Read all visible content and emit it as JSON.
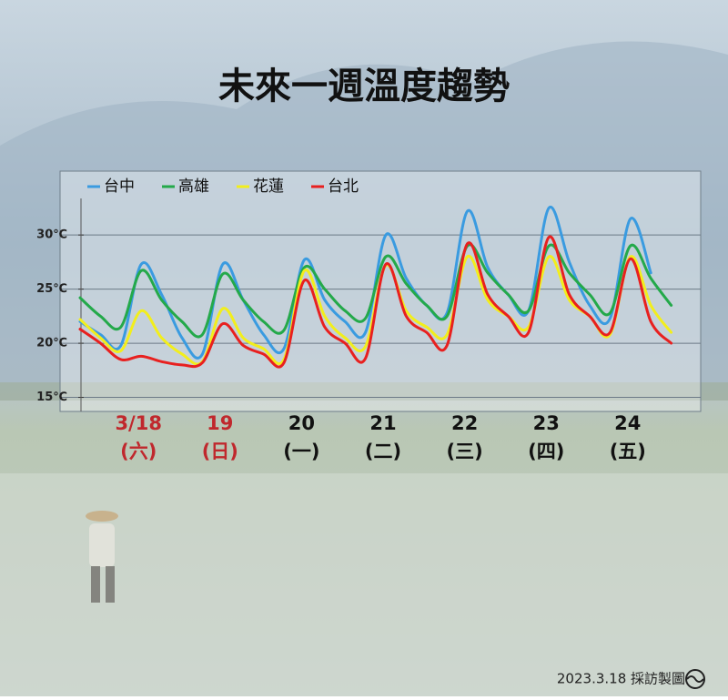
{
  "chart_data": {
    "type": "line",
    "title": "未來一週溫度趨勢",
    "days": [
      {
        "date": "3/18",
        "weekday": "(六)",
        "color": "#c0282d"
      },
      {
        "date": "19",
        "weekday": "(日)",
        "color": "#c0282d"
      },
      {
        "date": "20",
        "weekday": "(一)",
        "color": "#111111"
      },
      {
        "date": "21",
        "weekday": "(二)",
        "color": "#111111"
      },
      {
        "date": "22",
        "weekday": "(三)",
        "color": "#111111"
      },
      {
        "date": "23",
        "weekday": "(四)",
        "color": "#111111"
      },
      {
        "date": "24",
        "weekday": "(五)",
        "color": "#111111"
      }
    ],
    "ylim": [
      13.7,
      35.9
    ],
    "yticks": [
      {
        "value": 15,
        "label": "15℃"
      },
      {
        "value": 20,
        "label": "20℃"
      },
      {
        "value": 25,
        "label": "25℃"
      },
      {
        "value": 30,
        "label": "30℃"
      }
    ],
    "grid": true,
    "legend": "top-left",
    "series": [
      {
        "name": "台中",
        "color": "#3a9be0",
        "values": [
          22.0,
          20.8,
          19.8,
          27.3,
          24.5,
          20.5,
          19.0,
          27.3,
          24.0,
          20.8,
          19.5,
          27.7,
          24.0,
          22.0,
          21.0,
          30.0,
          26.0,
          23.5,
          22.8,
          32.2,
          27.0,
          24.5,
          23.0,
          32.5,
          27.5,
          23.5,
          22.3,
          31.5,
          26.5,
          null
        ]
      },
      {
        "name": "高雄",
        "color": "#24a94a",
        "values": [
          24.2,
          22.5,
          21.5,
          26.7,
          24.0,
          22.0,
          20.8,
          26.4,
          24.0,
          22.0,
          21.2,
          27.0,
          25.0,
          23.0,
          22.3,
          28.0,
          25.5,
          23.5,
          22.5,
          29.0,
          26.5,
          24.5,
          23.0,
          29.0,
          26.5,
          24.5,
          22.8,
          29.0,
          26.0,
          23.5
        ]
      },
      {
        "name": "花蓮",
        "color": "#f2ee1c",
        "values": [
          22.2,
          20.5,
          19.3,
          23.0,
          20.5,
          19.0,
          18.3,
          23.2,
          20.5,
          19.5,
          18.5,
          26.7,
          22.5,
          20.5,
          19.7,
          27.2,
          23.0,
          21.5,
          20.8,
          28.0,
          24.0,
          22.5,
          21.5,
          28.0,
          24.0,
          22.5,
          20.8,
          28.0,
          23.5,
          21.0
        ]
      },
      {
        "name": "台北",
        "color": "#e8201f",
        "values": [
          21.3,
          20.0,
          18.5,
          18.8,
          18.3,
          18.0,
          18.2,
          21.8,
          19.8,
          19.0,
          18.2,
          25.8,
          21.5,
          20.0,
          18.6,
          27.3,
          22.5,
          21.0,
          19.8,
          29.2,
          24.5,
          22.5,
          21.0,
          29.8,
          24.5,
          22.5,
          21.0,
          27.8,
          22.0,
          20.0
        ]
      }
    ]
  },
  "footer": "2023.3.18 採訪製圖"
}
